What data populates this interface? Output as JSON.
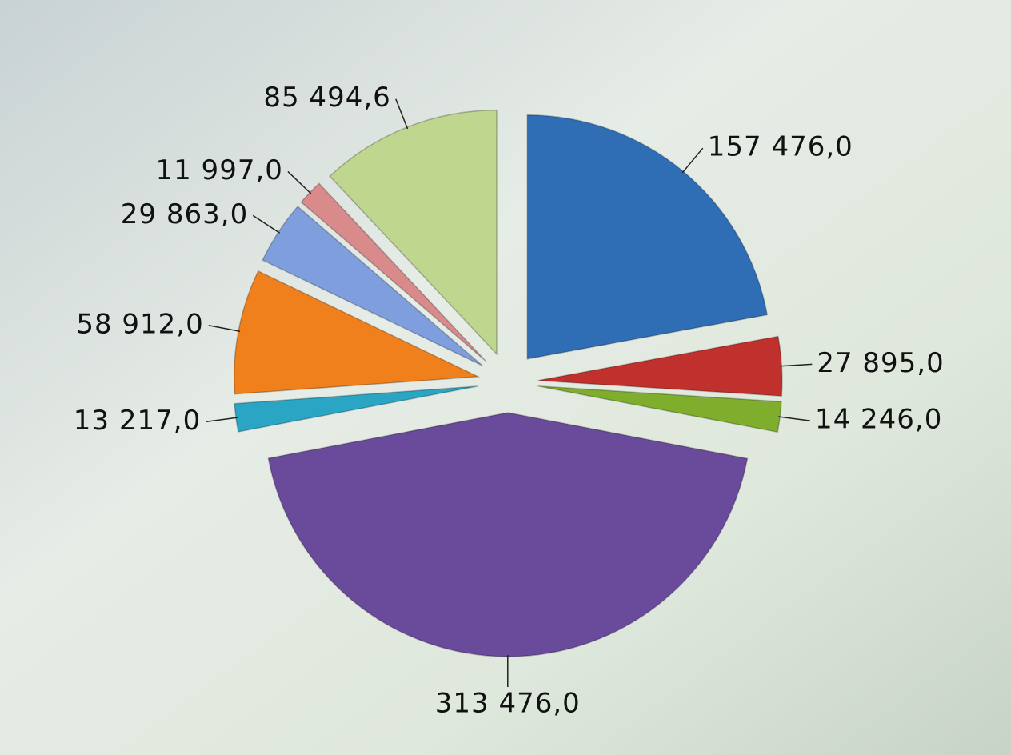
{
  "chart_data": {
    "type": "pie",
    "categories": [
      null,
      null,
      null,
      null,
      null,
      null,
      null,
      null,
      null
    ],
    "values": [
      157476.0,
      27895.0,
      14246.0,
      313476.0,
      13217.0,
      58912.0,
      29863.0,
      11997.0,
      85494.6
    ],
    "value_labels": [
      "157 476,0",
      "27 895,0",
      "14 246,0",
      "313 476,0",
      "13 217,0",
      "58 912,0",
      "29 863,0",
      "11 997,0",
      "85 494,6"
    ],
    "colors": [
      "#2f6db5",
      "#c0302c",
      "#7fae2c",
      "#6a4a9a",
      "#2aa6c4",
      "#f0801c",
      "#7f9ede",
      "#d98a8a",
      "#bfd68e"
    ]
  }
}
